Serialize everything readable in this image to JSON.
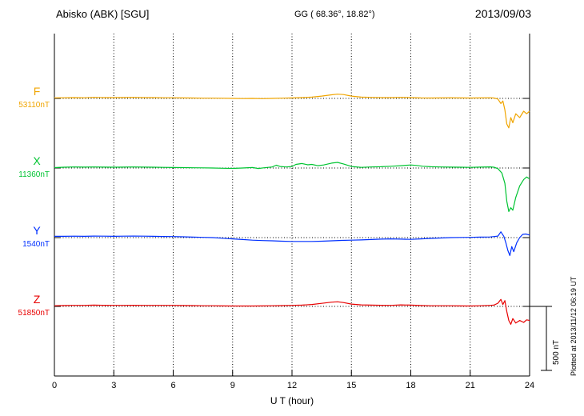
{
  "header": {
    "station": "Abisko (ABK)  [SGU]",
    "coords": "GG ( 68.36°,  18.82°)",
    "date": "2013/09/03"
  },
  "footer": {
    "xaxis_title": "U T (hour)"
  },
  "side": {
    "scale_label": "500 nT",
    "plotted_at": "Plotted at 2013/11/12 06:19 UT"
  },
  "chart_data": {
    "type": "line",
    "title": "Abisko (ABK) [SGU] magnetogram 2013/09/03",
    "xlabel": "U T (hour)",
    "x_range": [
      0,
      24
    ],
    "x_ticks": [
      0,
      3,
      6,
      9,
      12,
      15,
      18,
      21,
      24
    ],
    "grid": "dotted vertical lines at 3-hour ticks; dotted horizontal baseline per trace",
    "scale_bar": {
      "label": "500 nT",
      "nT": 500
    },
    "units": "nT deviation from baseline",
    "series": [
      {
        "name": "F",
        "baseline_label": "53110nT",
        "baseline_nT": 53110,
        "color": "#f0a500",
        "points": [
          [
            0,
            4
          ],
          [
            0.5,
            5
          ],
          [
            1,
            6
          ],
          [
            1.5,
            5
          ],
          [
            2,
            8
          ],
          [
            2.5,
            6
          ],
          [
            3,
            6
          ],
          [
            3.5,
            7
          ],
          [
            4,
            8
          ],
          [
            4.5,
            6
          ],
          [
            5,
            6
          ],
          [
            5.5,
            5
          ],
          [
            6,
            5
          ],
          [
            6.5,
            4
          ],
          [
            7,
            3
          ],
          [
            7.5,
            2
          ],
          [
            8,
            2
          ],
          [
            8.5,
            1
          ],
          [
            9,
            0
          ],
          [
            9.5,
            -1
          ],
          [
            10,
            0
          ],
          [
            10.5,
            -2
          ],
          [
            11,
            0
          ],
          [
            11.5,
            2
          ],
          [
            12,
            4
          ],
          [
            12.5,
            6
          ],
          [
            13,
            10
          ],
          [
            13.5,
            18
          ],
          [
            14,
            28
          ],
          [
            14.3,
            33
          ],
          [
            14.6,
            30
          ],
          [
            15,
            18
          ],
          [
            15.5,
            10
          ],
          [
            16,
            8
          ],
          [
            16.5,
            6
          ],
          [
            17,
            6
          ],
          [
            17.5,
            8
          ],
          [
            18,
            6
          ],
          [
            18.5,
            4
          ],
          [
            19,
            3
          ],
          [
            19.5,
            4
          ],
          [
            20,
            5
          ],
          [
            20.5,
            4
          ],
          [
            21,
            3
          ],
          [
            21.5,
            4
          ],
          [
            22,
            5
          ],
          [
            22.2,
            3
          ],
          [
            22.4,
            -5
          ],
          [
            22.55,
            -40
          ],
          [
            22.65,
            -20
          ],
          [
            22.75,
            -90
          ],
          [
            22.85,
            -200
          ],
          [
            22.95,
            -230
          ],
          [
            23.05,
            -150
          ],
          [
            23.15,
            -190
          ],
          [
            23.3,
            -120
          ],
          [
            23.5,
            -150
          ],
          [
            23.7,
            -100
          ],
          [
            23.85,
            -120
          ],
          [
            24,
            -100
          ]
        ]
      },
      {
        "name": "X",
        "baseline_label": "11360nT",
        "baseline_nT": 11360,
        "color": "#00c432",
        "points": [
          [
            0,
            3
          ],
          [
            0.5,
            6
          ],
          [
            1,
            8
          ],
          [
            1.5,
            7
          ],
          [
            2,
            8
          ],
          [
            2.5,
            7
          ],
          [
            3,
            6
          ],
          [
            3.5,
            7
          ],
          [
            4,
            8
          ],
          [
            4.5,
            7
          ],
          [
            5,
            6
          ],
          [
            5.5,
            5
          ],
          [
            6,
            4
          ],
          [
            6.5,
            3
          ],
          [
            7,
            2
          ],
          [
            7.5,
            1
          ],
          [
            8,
            0
          ],
          [
            8.5,
            -2
          ],
          [
            9,
            -3
          ],
          [
            9.5,
            0
          ],
          [
            10,
            4
          ],
          [
            10.3,
            -4
          ],
          [
            10.6,
            2
          ],
          [
            11,
            8
          ],
          [
            11.2,
            22
          ],
          [
            11.4,
            12
          ],
          [
            11.7,
            8
          ],
          [
            12,
            12
          ],
          [
            12.2,
            28
          ],
          [
            12.5,
            35
          ],
          [
            12.8,
            25
          ],
          [
            13,
            28
          ],
          [
            13.3,
            18
          ],
          [
            13.6,
            24
          ],
          [
            14,
            38
          ],
          [
            14.3,
            44
          ],
          [
            14.6,
            32
          ],
          [
            15,
            12
          ],
          [
            15.5,
            5
          ],
          [
            16,
            8
          ],
          [
            16.5,
            10
          ],
          [
            17,
            14
          ],
          [
            17.5,
            18
          ],
          [
            18,
            24
          ],
          [
            18.3,
            20
          ],
          [
            18.6,
            14
          ],
          [
            19,
            10
          ],
          [
            19.5,
            8
          ],
          [
            20,
            7
          ],
          [
            20.5,
            6
          ],
          [
            21,
            5
          ],
          [
            21.5,
            7
          ],
          [
            22,
            9
          ],
          [
            22.2,
            6
          ],
          [
            22.4,
            -5
          ],
          [
            22.6,
            -40
          ],
          [
            22.75,
            -120
          ],
          [
            22.85,
            -260
          ],
          [
            22.95,
            -340
          ],
          [
            23.05,
            -310
          ],
          [
            23.15,
            -330
          ],
          [
            23.3,
            -230
          ],
          [
            23.5,
            -140
          ],
          [
            23.7,
            -90
          ],
          [
            23.85,
            -70
          ],
          [
            24,
            -85
          ]
        ]
      },
      {
        "name": "Y",
        "baseline_label": "1540nT",
        "baseline_nT": 1540,
        "color": "#0030ff",
        "points": [
          [
            0,
            10
          ],
          [
            0.5,
            10
          ],
          [
            1,
            11
          ],
          [
            1.5,
            10
          ],
          [
            2,
            12
          ],
          [
            2.5,
            11
          ],
          [
            3,
            10
          ],
          [
            3.5,
            11
          ],
          [
            4,
            12
          ],
          [
            4.5,
            11
          ],
          [
            5,
            10
          ],
          [
            5.5,
            9
          ],
          [
            6,
            8
          ],
          [
            6.5,
            6
          ],
          [
            7,
            4
          ],
          [
            7.5,
            2
          ],
          [
            8,
            0
          ],
          [
            8.5,
            -5
          ],
          [
            9,
            -10
          ],
          [
            9.5,
            -15
          ],
          [
            10,
            -20
          ],
          [
            10.5,
            -23
          ],
          [
            11,
            -25
          ],
          [
            11.5,
            -28
          ],
          [
            12,
            -30
          ],
          [
            12.5,
            -30
          ],
          [
            13,
            -30
          ],
          [
            13.5,
            -28
          ],
          [
            14,
            -25
          ],
          [
            14.5,
            -22
          ],
          [
            15,
            -20
          ],
          [
            15.5,
            -18
          ],
          [
            16,
            -15
          ],
          [
            16.5,
            -12
          ],
          [
            17,
            -10
          ],
          [
            17.5,
            -12
          ],
          [
            18,
            -14
          ],
          [
            18.5,
            -10
          ],
          [
            19,
            -6
          ],
          [
            19.5,
            -3
          ],
          [
            20,
            0
          ],
          [
            20.5,
            1
          ],
          [
            21,
            2
          ],
          [
            21.5,
            4
          ],
          [
            22,
            5
          ],
          [
            22.2,
            8
          ],
          [
            22.4,
            12
          ],
          [
            22.55,
            45
          ],
          [
            22.7,
            10
          ],
          [
            22.8,
            -40
          ],
          [
            22.9,
            -100
          ],
          [
            23,
            -140
          ],
          [
            23.1,
            -70
          ],
          [
            23.2,
            -110
          ],
          [
            23.35,
            -40
          ],
          [
            23.5,
            0
          ],
          [
            23.65,
            25
          ],
          [
            23.8,
            28
          ],
          [
            24,
            20
          ]
        ]
      },
      {
        "name": "Z",
        "baseline_label": "51850nT",
        "baseline_nT": 51850,
        "color": "#e80000",
        "points": [
          [
            0,
            5
          ],
          [
            0.5,
            7
          ],
          [
            1,
            8
          ],
          [
            1.5,
            8
          ],
          [
            2,
            10
          ],
          [
            2.5,
            9
          ],
          [
            3,
            8
          ],
          [
            3.5,
            8
          ],
          [
            4,
            9
          ],
          [
            4.5,
            8
          ],
          [
            5,
            8
          ],
          [
            5.5,
            8
          ],
          [
            6,
            8
          ],
          [
            6.5,
            7
          ],
          [
            7,
            6
          ],
          [
            7.5,
            5
          ],
          [
            8,
            5
          ],
          [
            8.5,
            4
          ],
          [
            9,
            3
          ],
          [
            9.5,
            3
          ],
          [
            10,
            3
          ],
          [
            10.5,
            4
          ],
          [
            11,
            5
          ],
          [
            11.5,
            6
          ],
          [
            12,
            8
          ],
          [
            12.5,
            10
          ],
          [
            13,
            15
          ],
          [
            13.5,
            24
          ],
          [
            14,
            33
          ],
          [
            14.3,
            36
          ],
          [
            14.6,
            30
          ],
          [
            15,
            18
          ],
          [
            15.5,
            12
          ],
          [
            16,
            10
          ],
          [
            16.5,
            9
          ],
          [
            17,
            8
          ],
          [
            17.5,
            12
          ],
          [
            18,
            10
          ],
          [
            18.5,
            7
          ],
          [
            19,
            5
          ],
          [
            19.5,
            5
          ],
          [
            20,
            5
          ],
          [
            20.5,
            4
          ],
          [
            21,
            3
          ],
          [
            21.5,
            5
          ],
          [
            22,
            8
          ],
          [
            22.2,
            10
          ],
          [
            22.4,
            25
          ],
          [
            22.55,
            55
          ],
          [
            22.65,
            15
          ],
          [
            22.75,
            45
          ],
          [
            22.85,
            -40
          ],
          [
            22.95,
            -110
          ],
          [
            23.05,
            -140
          ],
          [
            23.15,
            -95
          ],
          [
            23.3,
            -130
          ],
          [
            23.5,
            -110
          ],
          [
            23.7,
            -125
          ],
          [
            23.85,
            -105
          ],
          [
            24,
            -110
          ]
        ]
      }
    ]
  }
}
